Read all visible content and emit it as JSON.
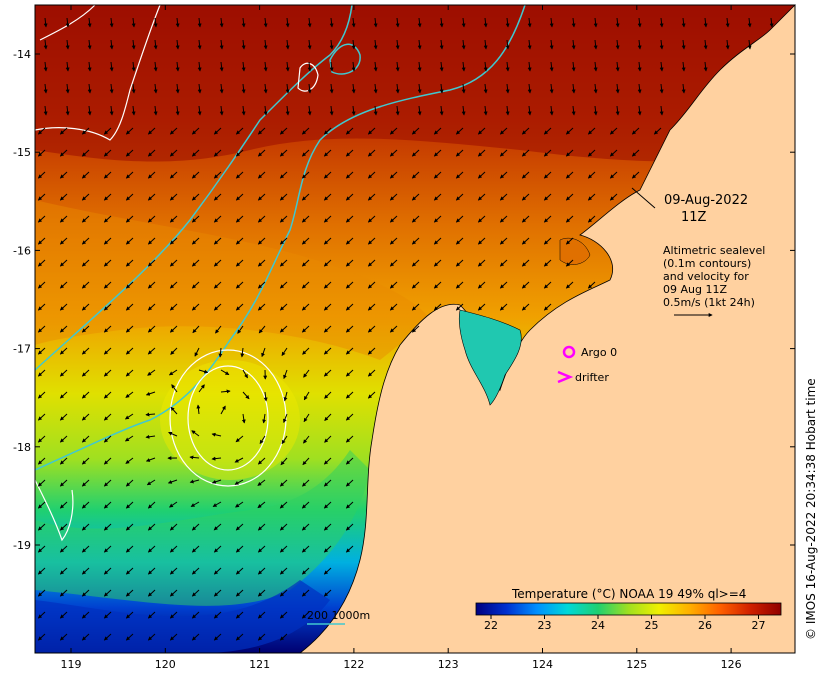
{
  "map": {
    "date_line1": "09-Aug-2022",
    "date_line2": "11Z",
    "altimetry_note": [
      "Altimetric sealevel",
      "(0.1m contours)",
      "and velocity for",
      "09 Aug 11Z",
      "0.5m/s (1kt 24h)"
    ],
    "legend": {
      "argo_label": "Argo 0",
      "drifter_label": "drifter",
      "argo_color": "#ff00ff",
      "drifter_color": "#ff00ff"
    },
    "bathymetry_label": "200  1000m",
    "bathymetry_color": "#40c8d0",
    "copyright": "© IMOS 16-Aug-2022 20:34:38 Hobart time",
    "lon_ticks": [
      "119",
      "120",
      "121",
      "122",
      "123",
      "124",
      "125",
      "126"
    ],
    "lat_ticks": [
      "-14",
      "-15",
      "-16",
      "-17",
      "-18",
      "-19"
    ],
    "colorbar": {
      "title": "Temperature (°C) NOAA 19 49% ql>=4",
      "ticks": [
        "22",
        "23",
        "24",
        "25",
        "26",
        "27"
      ],
      "colors": [
        "#000080",
        "#0030d0",
        "#0090ff",
        "#00d8d8",
        "#20d070",
        "#a0e020",
        "#f0f000",
        "#ffb000",
        "#ff6000",
        "#d02000",
        "#900000"
      ]
    },
    "land_color": "#ffd1a0"
  }
}
